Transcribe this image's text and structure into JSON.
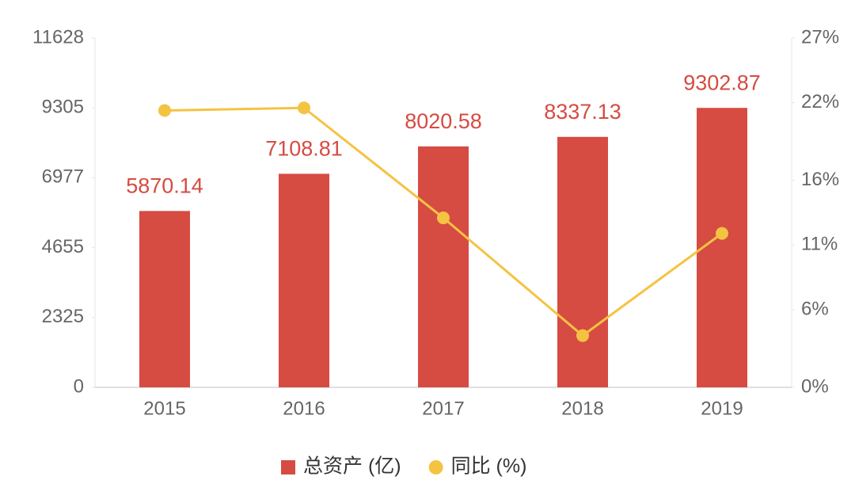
{
  "chart_data": {
    "type": "bar+line",
    "categories": [
      "2015",
      "2016",
      "2017",
      "2018",
      "2019"
    ],
    "series": [
      {
        "name": "总资产 (亿)",
        "type": "bar",
        "color": "#d64b42",
        "axis": "y",
        "values": [
          5870.14,
          7108.81,
          8020.58,
          8337.13,
          9302.87
        ]
      },
      {
        "name": "同比 (%)",
        "type": "line",
        "color": "#f5c342",
        "axis": "y2",
        "values": [
          21.4,
          21.6,
          13.1,
          4.0,
          11.9
        ]
      }
    ],
    "ylim": [
      0,
      11628
    ],
    "yticks": [
      0,
      2325,
      4655,
      6977,
      9305,
      11628
    ],
    "y2lim": [
      0,
      27
    ],
    "y2ticks": [
      {
        "value": 0,
        "label": "0%"
      },
      {
        "value": 6,
        "label": "6%"
      },
      {
        "value": 11,
        "label": "11%"
      },
      {
        "value": 16,
        "label": "16%"
      },
      {
        "value": 22,
        "label": "22%"
      },
      {
        "value": 27,
        "label": "27%"
      }
    ],
    "grid": false,
    "legend": "bottom"
  }
}
